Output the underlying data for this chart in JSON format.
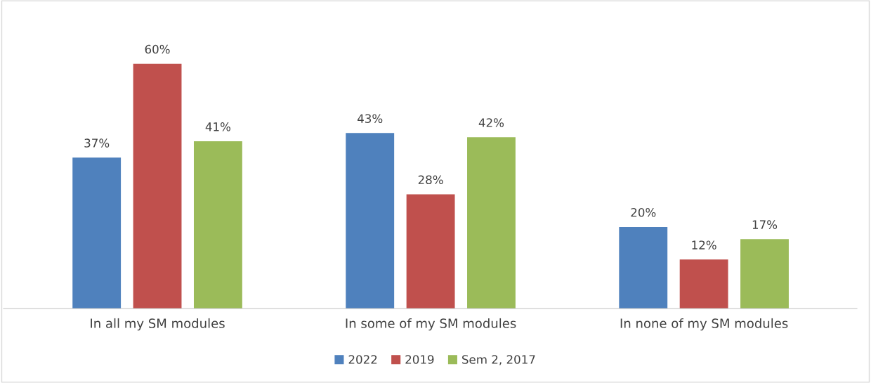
{
  "chart_data": {
    "type": "bar",
    "categories": [
      "In all my SM modules",
      "In some of my SM modules",
      "In none of my SM modules"
    ],
    "series": [
      {
        "name": "2022",
        "color": "#4f81bd",
        "values": [
          37,
          43,
          20
        ],
        "value_labels": [
          "37%",
          "43%",
          "20%"
        ]
      },
      {
        "name": "2019",
        "color": "#c0504d",
        "values": [
          60,
          28,
          12
        ],
        "value_labels": [
          "60%",
          "28%",
          "12%"
        ]
      },
      {
        "name": "Sem 2, 2017",
        "color": "#9bbb59",
        "values": [
          41,
          42,
          17
        ],
        "value_labels": [
          "41%",
          "42%",
          "17%"
        ]
      }
    ],
    "legend": "bottom"
  }
}
